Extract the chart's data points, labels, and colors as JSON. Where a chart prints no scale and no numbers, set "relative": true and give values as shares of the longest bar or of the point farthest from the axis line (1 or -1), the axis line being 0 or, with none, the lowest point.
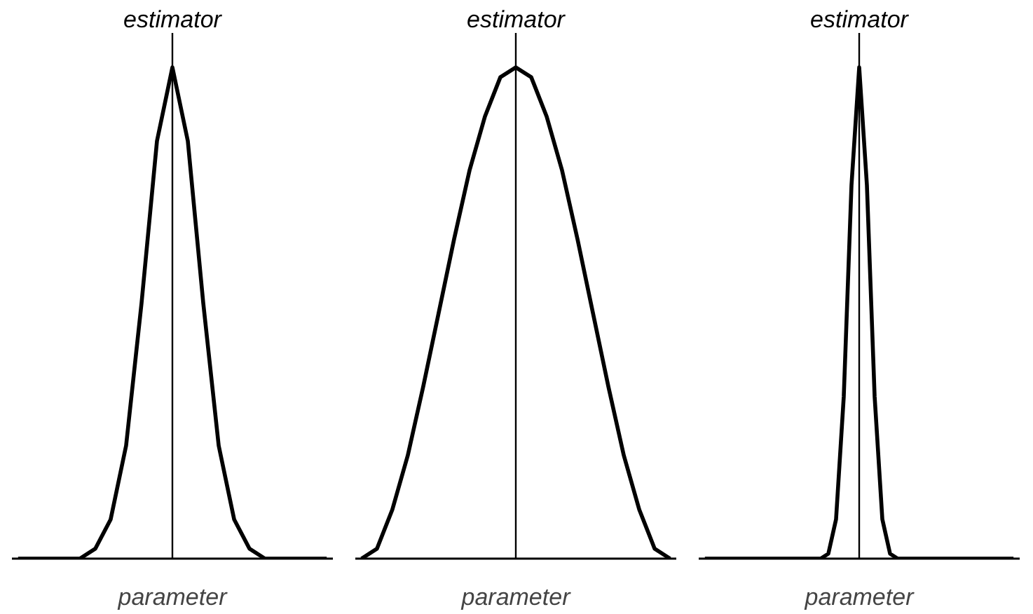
{
  "chart_data": [
    {
      "type": "line",
      "relative": true,
      "xlabel": "parameter",
      "annotations": [
        "estimator"
      ],
      "categories": [
        null,
        null,
        null,
        null,
        null,
        null,
        null,
        null,
        null,
        null,
        null,
        null,
        null,
        null,
        null,
        null,
        null,
        null,
        null,
        null,
        null
      ],
      "values": [
        0,
        0,
        0,
        0,
        0,
        0.02,
        0.08,
        0.23,
        0.52,
        0.85,
        1,
        0.85,
        0.52,
        0.23,
        0.08,
        0.02,
        0,
        0,
        0,
        0,
        0
      ],
      "color": "#000000"
    },
    {
      "type": "line",
      "relative": true,
      "xlabel": "parameter",
      "annotations": [
        "estimator"
      ],
      "categories": [
        null,
        null,
        null,
        null,
        null,
        null,
        null,
        null,
        null,
        null,
        null,
        null,
        null,
        null,
        null,
        null,
        null,
        null,
        null,
        null,
        null
      ],
      "values": [
        0,
        0.02,
        0.1,
        0.21,
        0.35,
        0.5,
        0.65,
        0.79,
        0.9,
        0.98,
        1,
        0.98,
        0.9,
        0.79,
        0.65,
        0.5,
        0.35,
        0.21,
        0.1,
        0.02,
        0
      ],
      "color": "#000000"
    },
    {
      "type": "line",
      "relative": true,
      "xlabel": "parameter",
      "annotations": [
        "estimator"
      ],
      "categories": [
        null,
        null,
        null,
        null,
        null,
        null,
        null,
        null,
        null,
        null,
        null,
        null,
        null,
        null,
        null,
        null,
        null,
        null,
        null,
        null,
        null,
        null,
        null,
        null,
        null,
        null,
        null,
        null,
        null,
        null,
        null,
        null,
        null,
        null,
        null,
        null,
        null,
        null,
        null,
        null,
        null
      ],
      "values": [
        0,
        0,
        0,
        0,
        0,
        0,
        0,
        0,
        0,
        0,
        0,
        0,
        0,
        0,
        0,
        0,
        0.01,
        0.08,
        0.33,
        0.76,
        1,
        0.76,
        0.33,
        0.08,
        0.01,
        0,
        0,
        0,
        0,
        0,
        0,
        0,
        0,
        0,
        0,
        0,
        0,
        0,
        0,
        0,
        0
      ],
      "color": "#000000"
    }
  ]
}
